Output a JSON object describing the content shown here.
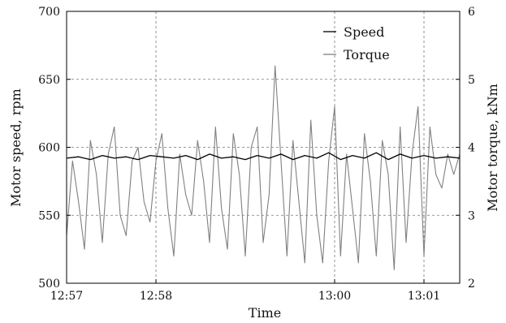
{
  "chart_data": {
    "type": "line",
    "title": "",
    "xlabel": "Time",
    "ylabel": "Motor speed, rpm",
    "y2label": "Motor torque, kNm",
    "x_unit": "minutes",
    "xlim": [
      "12:57:00",
      "13:01:24"
    ],
    "ylim": [
      500,
      700
    ],
    "y2lim": [
      2,
      6
    ],
    "x_ticks": [
      "12:57",
      "12:58",
      "13:00",
      "13:01"
    ],
    "y_ticks": [
      "500",
      "550",
      "600",
      "650",
      "700"
    ],
    "y2_ticks": [
      "2",
      "3",
      "4",
      "5",
      "6"
    ],
    "grid": true,
    "legend_position": "top-right",
    "series": [
      {
        "name": "Speed",
        "axis": "left",
        "color": "#000000",
        "x": [
          "12:57:00",
          "12:57:08",
          "12:57:16",
          "12:57:24",
          "12:57:32",
          "12:57:40",
          "12:57:48",
          "12:57:56",
          "12:58:04",
          "12:58:12",
          "12:58:20",
          "12:58:28",
          "12:58:36",
          "12:58:44",
          "12:58:52",
          "12:59:00",
          "12:59:08",
          "12:59:16",
          "12:59:24",
          "12:59:32",
          "12:59:40",
          "12:59:48",
          "12:59:56",
          "13:00:04",
          "13:00:12",
          "13:00:20",
          "13:00:28",
          "13:00:36",
          "13:00:44",
          "13:00:52",
          "13:01:00",
          "13:01:08",
          "13:01:16",
          "13:01:24"
        ],
        "values": [
          592,
          593,
          591,
          594,
          592,
          593,
          591,
          594,
          593,
          592,
          594,
          591,
          595,
          592,
          593,
          591,
          594,
          592,
          595,
          591,
          594,
          592,
          596,
          591,
          594,
          592,
          596,
          591,
          595,
          592,
          594,
          592,
          593,
          592
        ]
      },
      {
        "name": "Torque",
        "axis": "right",
        "color": "#808080",
        "x": [
          "12:57:00",
          "12:57:04",
          "12:57:08",
          "12:57:12",
          "12:57:16",
          "12:57:20",
          "12:57:24",
          "12:57:28",
          "12:57:32",
          "12:57:36",
          "12:57:40",
          "12:57:44",
          "12:57:48",
          "12:57:52",
          "12:57:56",
          "12:58:00",
          "12:58:04",
          "12:58:08",
          "12:58:12",
          "12:58:16",
          "12:58:20",
          "12:58:24",
          "12:58:28",
          "12:58:32",
          "12:58:36",
          "12:58:40",
          "12:58:44",
          "12:58:48",
          "12:58:52",
          "12:58:56",
          "12:59:00",
          "12:59:04",
          "12:59:08",
          "12:59:12",
          "12:59:16",
          "12:59:20",
          "12:59:24",
          "12:59:28",
          "12:59:32",
          "12:59:36",
          "12:59:40",
          "12:59:44",
          "12:59:48",
          "12:59:52",
          "12:59:56",
          "13:00:00",
          "13:00:04",
          "13:00:08",
          "13:00:12",
          "13:00:16",
          "13:00:20",
          "13:00:24",
          "13:00:28",
          "13:00:32",
          "13:00:36",
          "13:00:40",
          "13:00:44",
          "13:00:48",
          "13:00:52",
          "13:00:56",
          "13:01:00",
          "13:01:04",
          "13:01:08",
          "13:01:12",
          "13:01:16",
          "13:01:20",
          "13:01:24"
        ],
        "values": [
          2.7,
          3.8,
          3.2,
          2.5,
          4.1,
          3.6,
          2.6,
          3.9,
          4.3,
          3.0,
          2.7,
          3.8,
          4.0,
          3.2,
          2.9,
          3.8,
          4.2,
          3.1,
          2.4,
          3.9,
          3.3,
          3.0,
          4.1,
          3.5,
          2.6,
          4.3,
          3.1,
          2.5,
          4.2,
          3.6,
          2.4,
          4.0,
          4.3,
          2.6,
          3.3,
          5.2,
          3.8,
          2.4,
          4.1,
          3.2,
          2.3,
          4.4,
          3.0,
          2.3,
          3.8,
          4.6,
          2.4,
          3.9,
          3.1,
          2.3,
          4.2,
          3.5,
          2.4,
          4.1,
          3.6,
          2.2,
          4.3,
          2.6,
          3.9,
          4.6,
          2.4,
          4.3,
          3.6,
          3.4,
          3.9,
          3.6,
          3.9
        ]
      }
    ]
  }
}
